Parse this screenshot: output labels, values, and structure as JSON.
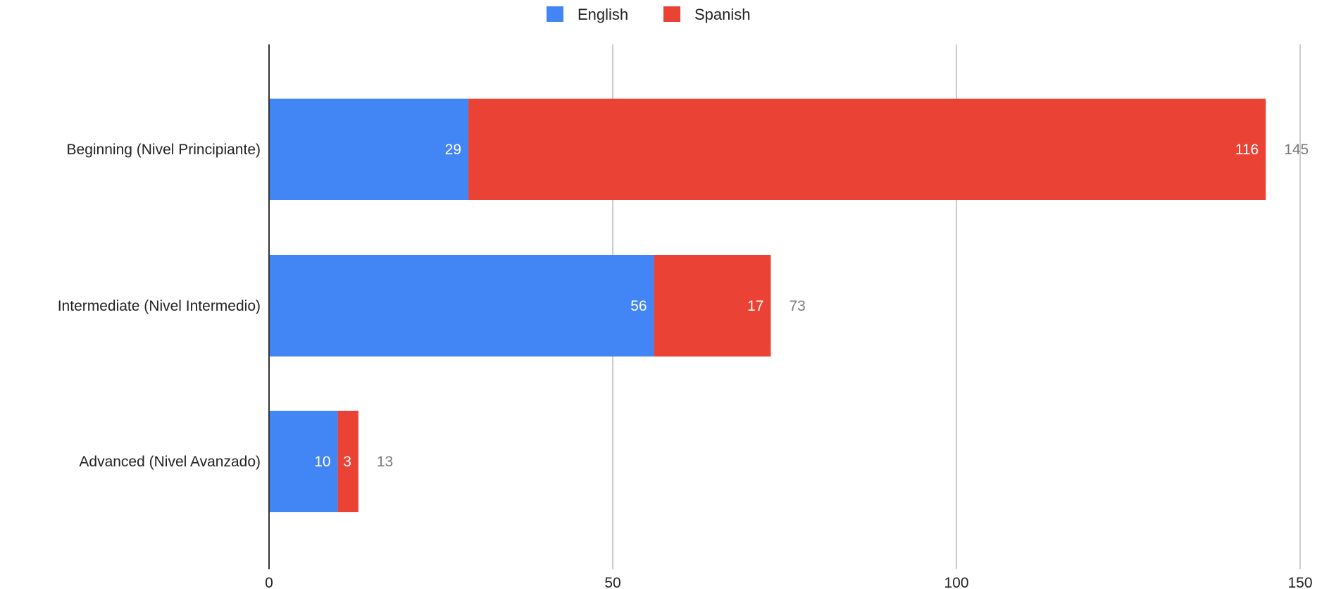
{
  "chart_data": {
    "type": "bar",
    "orientation": "horizontal",
    "stacked": true,
    "categories": [
      "Beginning (Nivel Principiante)",
      "Intermediate (Nivel Intermedio)",
      "Advanced (Nivel Avanzado)"
    ],
    "series": [
      {
        "name": "English",
        "values": [
          29,
          56,
          10
        ],
        "color": "#4285f4"
      },
      {
        "name": "Spanish",
        "values": [
          116,
          17,
          3
        ],
        "color": "#ea4335"
      }
    ],
    "totals": [
      145,
      73,
      13
    ],
    "xlim": [
      0,
      150
    ],
    "xticks": [
      0,
      50,
      100,
      150
    ],
    "title": "",
    "xlabel": "",
    "ylabel": "",
    "grid": true,
    "legend_position": "top"
  }
}
